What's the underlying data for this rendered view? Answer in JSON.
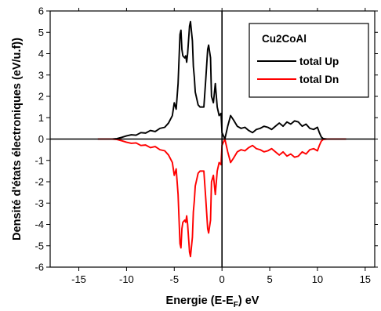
{
  "chart_data": {
    "type": "line",
    "xlabel_main": "Energie (E-E",
    "xlabel_sub": "F",
    "xlabel_tail": ") eV",
    "ylabel": "Densité d'états électroniques (eV/u.f))",
    "xlim": [
      -18,
      16
    ],
    "ylim": [
      -6,
      6
    ],
    "xticks": [
      -15,
      -10,
      -5,
      0,
      5,
      10,
      15
    ],
    "yticks": [
      -6,
      -5,
      -4,
      -3,
      -2,
      -1,
      0,
      1,
      2,
      3,
      4,
      5,
      6
    ],
    "grid": false,
    "legend": {
      "title": "Cu2CoAl",
      "placement": "top-right"
    },
    "series": [
      {
        "name": "total Up",
        "color": "#000000",
        "x": [
          -13,
          -11.5,
          -11,
          -10.5,
          -10,
          -9.5,
          -9,
          -8.5,
          -8,
          -7.5,
          -7,
          -6.5,
          -6,
          -5.6,
          -5.2,
          -5,
          -4.8,
          -4.6,
          -4.4,
          -4.3,
          -4.2,
          -4.1,
          -3.9,
          -3.8,
          -3.7,
          -3.6,
          -3.4,
          -3.3,
          -3.1,
          -3.0,
          -2.9,
          -2.8,
          -2.6,
          -2.5,
          -2.3,
          -2.1,
          -1.9,
          -1.7,
          -1.5,
          -1.4,
          -1.2,
          -1.1,
          -0.9,
          -0.7,
          -0.5,
          -0.3,
          -0.1,
          0,
          0.3,
          0.6,
          0.9,
          1.2,
          1.6,
          2.0,
          2.4,
          2.8,
          3.2,
          3.6,
          4.0,
          4.4,
          4.8,
          5.2,
          5.6,
          6.0,
          6.4,
          6.8,
          7.2,
          7.6,
          8.0,
          8.4,
          8.8,
          9.2,
          9.6,
          10.0,
          10.2,
          10.4,
          10.6,
          11,
          13
        ],
        "values": [
          0,
          0,
          0.02,
          0.08,
          0.15,
          0.2,
          0.18,
          0.3,
          0.28,
          0.4,
          0.35,
          0.5,
          0.55,
          0.75,
          1.1,
          1.7,
          1.4,
          2.6,
          4.9,
          5.1,
          4.2,
          3.9,
          3.8,
          3.9,
          3.6,
          4.0,
          5.3,
          5.5,
          4.6,
          3.4,
          2.9,
          2.2,
          1.8,
          1.6,
          1.5,
          1.5,
          1.5,
          2.8,
          4.2,
          4.4,
          3.8,
          2.0,
          1.7,
          2.6,
          1.5,
          1.1,
          1.2,
          0.3,
          0.0,
          0.6,
          1.1,
          0.9,
          0.6,
          0.5,
          0.55,
          0.4,
          0.3,
          0.45,
          0.5,
          0.6,
          0.55,
          0.45,
          0.6,
          0.75,
          0.6,
          0.8,
          0.7,
          0.85,
          0.8,
          0.6,
          0.7,
          0.5,
          0.45,
          0.55,
          0.3,
          0.1,
          0.02,
          0,
          0
        ]
      },
      {
        "name": "total Dn",
        "color": "#ff0000",
        "x": [
          -13,
          -11.5,
          -11,
          -10.5,
          -10,
          -9.5,
          -9,
          -8.5,
          -8,
          -7.5,
          -7,
          -6.5,
          -6,
          -5.6,
          -5.2,
          -5,
          -4.8,
          -4.6,
          -4.4,
          -4.3,
          -4.2,
          -4.1,
          -3.9,
          -3.8,
          -3.7,
          -3.6,
          -3.4,
          -3.3,
          -3.1,
          -3.0,
          -2.9,
          -2.8,
          -2.6,
          -2.5,
          -2.3,
          -2.1,
          -1.9,
          -1.7,
          -1.5,
          -1.4,
          -1.2,
          -1.1,
          -0.9,
          -0.7,
          -0.5,
          -0.3,
          -0.1,
          0,
          0.3,
          0.6,
          0.9,
          1.2,
          1.6,
          2.0,
          2.4,
          2.8,
          3.2,
          3.6,
          4.0,
          4.4,
          4.8,
          5.2,
          5.6,
          6.0,
          6.4,
          6.8,
          7.2,
          7.6,
          8.0,
          8.4,
          8.8,
          9.2,
          9.6,
          10.0,
          10.2,
          10.4,
          10.6,
          11,
          13
        ],
        "values": [
          0,
          0,
          -0.02,
          -0.08,
          -0.15,
          -0.2,
          -0.18,
          -0.3,
          -0.28,
          -0.4,
          -0.35,
          -0.5,
          -0.55,
          -0.75,
          -1.1,
          -1.7,
          -1.4,
          -2.6,
          -4.9,
          -5.1,
          -4.2,
          -3.9,
          -3.8,
          -3.9,
          -3.6,
          -4.0,
          -5.3,
          -5.5,
          -4.6,
          -3.4,
          -2.9,
          -2.2,
          -1.8,
          -1.6,
          -1.5,
          -1.5,
          -1.5,
          -2.8,
          -4.2,
          -4.4,
          -3.8,
          -2.0,
          -1.7,
          -2.6,
          -1.5,
          -1.1,
          -1.2,
          -0.3,
          -0.0,
          -0.6,
          -1.1,
          -0.9,
          -0.6,
          -0.5,
          -0.55,
          -0.4,
          -0.3,
          -0.45,
          -0.5,
          -0.6,
          -0.55,
          -0.45,
          -0.6,
          -0.75,
          -0.6,
          -0.8,
          -0.7,
          -0.85,
          -0.8,
          -0.6,
          -0.7,
          -0.5,
          -0.45,
          -0.55,
          -0.3,
          -0.1,
          -0.02,
          0,
          0
        ]
      }
    ]
  }
}
